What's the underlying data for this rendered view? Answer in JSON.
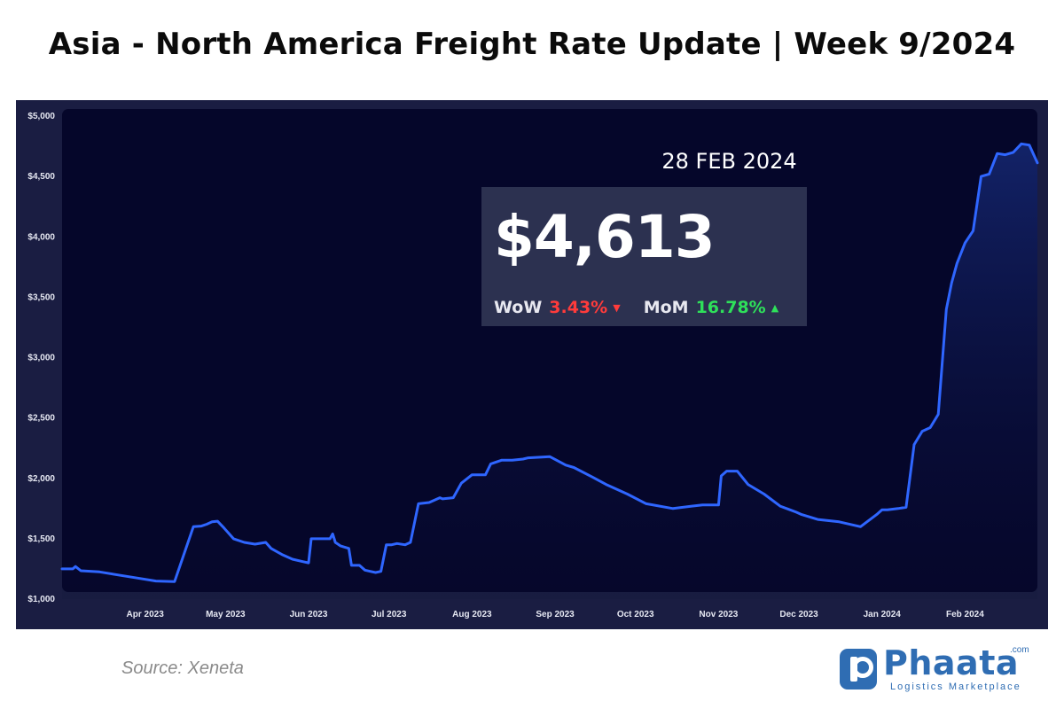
{
  "title": "Asia - North America Freight Rate Update | Week 9/2024",
  "chart_data": {
    "type": "area",
    "title": "",
    "xlabel": "",
    "ylabel": "",
    "ylim": [
      1000,
      5000
    ],
    "grid": false,
    "y_ticks": [
      "$1,000",
      "$1,500",
      "$2,000",
      "$2,500",
      "$3,000",
      "$3,500",
      "$4,000",
      "$4,500",
      "$5,000"
    ],
    "y_tick_values": [
      1000,
      1500,
      2000,
      2500,
      3000,
      3500,
      4000,
      4500,
      5000
    ],
    "x_ticks": [
      "Apr 2023",
      "May 2023",
      "Jun 2023",
      "Jul 2023",
      "Aug 2023",
      "Sep 2023",
      "Oct 2023",
      "Nov 2023",
      "Dec 2023",
      "Jan 2024",
      "Feb 2024"
    ],
    "x_tick_dates": [
      "2023-04-01",
      "2023-05-01",
      "2023-06-01",
      "2023-07-01",
      "2023-08-01",
      "2023-09-01",
      "2023-10-01",
      "2023-11-01",
      "2023-12-01",
      "2024-01-01",
      "2024-02-01"
    ],
    "x_range": [
      "2023-03-01",
      "2024-02-28"
    ],
    "line_color": "#2f66ff",
    "series": [
      {
        "x": [
          "2023-03-01",
          "2023-03-05",
          "2023-03-06",
          "2023-03-08",
          "2023-03-15",
          "2023-03-22",
          "2023-03-29",
          "2023-04-05",
          "2023-04-12",
          "2023-04-19",
          "2023-04-22",
          "2023-04-24",
          "2023-04-26",
          "2023-04-28",
          "2023-04-30",
          "2023-05-02",
          "2023-05-04",
          "2023-05-08",
          "2023-05-12",
          "2023-05-16",
          "2023-05-18",
          "2023-05-22",
          "2023-05-26",
          "2023-05-30",
          "2023-06-01",
          "2023-06-02",
          "2023-06-09",
          "2023-06-10",
          "2023-06-11",
          "2023-06-13",
          "2023-06-16",
          "2023-06-17",
          "2023-06-20",
          "2023-06-22",
          "2023-06-24",
          "2023-06-26",
          "2023-06-28",
          "2023-06-30",
          "2023-07-02",
          "2023-07-04",
          "2023-07-07",
          "2023-07-09",
          "2023-07-12",
          "2023-07-16",
          "2023-07-20",
          "2023-07-21",
          "2023-07-25",
          "2023-07-28",
          "2023-08-01",
          "2023-08-06",
          "2023-08-08",
          "2023-08-12",
          "2023-08-16",
          "2023-08-20",
          "2023-08-22",
          "2023-08-30",
          "2023-09-05",
          "2023-09-08",
          "2023-09-15",
          "2023-09-20",
          "2023-09-28",
          "2023-10-05",
          "2023-10-15",
          "2023-10-22",
          "2023-10-26",
          "2023-11-01",
          "2023-11-02",
          "2023-11-04",
          "2023-11-08",
          "2023-11-12",
          "2023-11-18",
          "2023-11-24",
          "2023-11-30",
          "2023-12-02",
          "2023-12-08",
          "2023-12-16",
          "2023-12-24",
          "2023-12-30",
          "2024-01-01",
          "2024-01-03",
          "2024-01-07",
          "2024-01-10",
          "2024-01-13",
          "2024-01-16",
          "2024-01-19",
          "2024-01-22",
          "2024-01-25",
          "2024-01-27",
          "2024-01-29",
          "2024-02-01",
          "2024-02-04",
          "2024-02-07",
          "2024-02-10",
          "2024-02-13",
          "2024-02-16",
          "2024-02-19",
          "2024-02-22",
          "2024-02-25",
          "2024-02-28"
        ],
        "y": [
          1250,
          1250,
          1270,
          1235,
          1225,
          1200,
          1175,
          1150,
          1145,
          1600,
          1605,
          1620,
          1640,
          1645,
          1600,
          1550,
          1500,
          1470,
          1455,
          1470,
          1420,
          1370,
          1330,
          1310,
          1300,
          1500,
          1500,
          1540,
          1470,
          1440,
          1420,
          1280,
          1280,
          1240,
          1230,
          1220,
          1230,
          1450,
          1450,
          1460,
          1450,
          1470,
          1790,
          1800,
          1840,
          1830,
          1840,
          1960,
          2030,
          2030,
          2120,
          2150,
          2150,
          2160,
          2170,
          2180,
          2110,
          2090,
          2010,
          1950,
          1870,
          1790,
          1750,
          1770,
          1780,
          1780,
          2020,
          2060,
          2060,
          1950,
          1870,
          1770,
          1720,
          1700,
          1660,
          1640,
          1600,
          1700,
          1740,
          1740,
          1750,
          1760,
          2280,
          2390,
          2420,
          2530,
          3400,
          3620,
          3780,
          3950,
          4050,
          4500,
          4520,
          4690,
          4680,
          4700,
          4770,
          4760,
          4613
        ]
      }
    ]
  },
  "annotation": {
    "date": "28 FEB 2024",
    "price": "$4,613",
    "wow_label": "WoW",
    "wow_value": "3.43%",
    "wow_arrow": "▼",
    "mom_label": "MoM",
    "mom_value": "16.78%",
    "mom_arrow": "▲",
    "down_color": "#ff3b3b",
    "up_color": "#2ee05a"
  },
  "footer": {
    "source": "Source: Xeneta",
    "logo_name": "Phaata",
    "logo_suffix": ".com",
    "logo_tagline": "Logistics Marketplace",
    "logo_color": "#2f6db3"
  }
}
